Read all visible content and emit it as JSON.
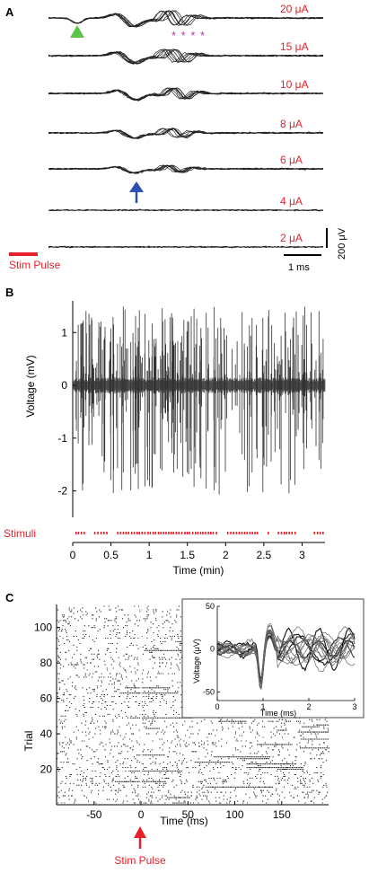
{
  "panels": {
    "A": {
      "label": "A",
      "traces": [
        {
          "label": "20 μA",
          "has_response": true
        },
        {
          "label": "15 μA",
          "has_response": true
        },
        {
          "label": "10 μA",
          "has_response": true
        },
        {
          "label": "8 μA",
          "has_response": true
        },
        {
          "label": "6 μA",
          "has_response": true
        },
        {
          "label": "4 μA",
          "has_response": false
        },
        {
          "label": "2 μA",
          "has_response": false
        }
      ],
      "asterisks": "* * * *",
      "stim_label": "Stim Pulse",
      "scale_v_label": "200 μV",
      "scale_t_label": "1 ms",
      "colors": {
        "stim": "#e8202a",
        "triangle": "#5cc24a",
        "arrow": "#2b4fb5",
        "asterisk": "#b03aa8"
      }
    },
    "B": {
      "label": "B",
      "ylabel": "Voltage (mV)",
      "xlabel": "Time (min)",
      "stimuli_label": "Stimuli"
    },
    "C": {
      "label": "C",
      "ylabel": "Trial",
      "xlabel": "Time (ms)",
      "stim_label": "Stim Pulse",
      "inset": {
        "ylabel": "Voltage (μV)",
        "xlabel": "Time (ms)"
      }
    }
  },
  "chart_data": [
    {
      "panel": "B",
      "type": "line",
      "xlim": [
        0,
        3.3
      ],
      "ylim": [
        -2.5,
        1.6
      ],
      "xticks": [
        "0",
        "0.5",
        "1",
        "1.5",
        "2",
        "2.5",
        "3"
      ],
      "xtick_values": [
        0,
        0.5,
        1,
        1.5,
        2,
        2.5,
        3
      ],
      "yticks": [
        "-2",
        "-1",
        "0",
        "1"
      ],
      "ytick_values": [
        -2,
        -1,
        0,
        1
      ],
      "xlabel": "Time (min)",
      "ylabel": "Voltage (mV)"
    },
    {
      "panel": "C",
      "type": "scatter",
      "xlim": [
        -90,
        200
      ],
      "ylim": [
        0,
        113
      ],
      "xticks": [
        "-50",
        "0",
        "50",
        "100",
        "150"
      ],
      "xtick_values": [
        -50,
        0,
        50,
        100,
        150
      ],
      "yticks": [
        "20",
        "40",
        "60",
        "80",
        "100"
      ],
      "ytick_values": [
        20,
        40,
        60,
        80,
        100
      ],
      "xlabel": "Time (ms)",
      "ylabel": "Trial"
    },
    {
      "panel": "C-inset",
      "type": "line",
      "xlim": [
        0,
        3
      ],
      "ylim": [
        -60,
        50
      ],
      "xticks": [
        "0",
        "1",
        "2",
        "3"
      ],
      "xtick_values": [
        0,
        1,
        2,
        3
      ],
      "yticks": [
        "-50",
        "0",
        "50"
      ],
      "ytick_values": [
        -50,
        0,
        50
      ],
      "xlabel": "Time (ms)",
      "ylabel": "Voltage (μV)"
    }
  ]
}
